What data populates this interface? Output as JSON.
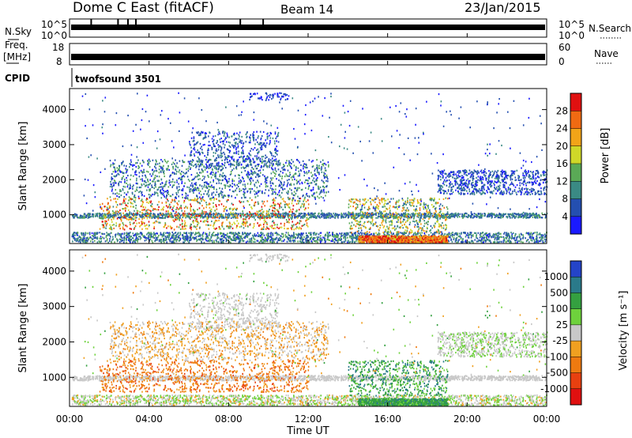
{
  "header": {
    "station": "Dome C East (fitACF)",
    "beam": "Beam 14",
    "date": "23/Jan/2015"
  },
  "status_panels": {
    "nsky_label": "N.Sky",
    "nsky_ticks": [
      "10^5",
      "10^0"
    ],
    "nsearch_label": "N.Search",
    "nsearch_ticks": [
      "10^5",
      "10^0"
    ],
    "freq_label": "Freq.",
    "freq_unit": "[MHz]",
    "freq_ticks": [
      "18",
      "8"
    ],
    "nave_label": "Nave",
    "nave_ticks": [
      "60",
      "0"
    ],
    "cpid_label": "CPID",
    "cpid_value": "twofsound 3501"
  },
  "colors": {
    "power_scale": [
      "#1a1aff",
      "#244fb0",
      "#3a8a84",
      "#5aaa56",
      "#cfd828",
      "#f2a418",
      "#f06a12",
      "#e01010"
    ],
    "velocity_scale": [
      "#2444c8",
      "#2a7a8a",
      "#34a040",
      "#6ed23c",
      "#c8c8c8",
      "#f0a020",
      "#ee7a10",
      "#e84010",
      "#e01010"
    ]
  },
  "chart_data": [
    {
      "type": "heatmap",
      "name": "power-panel",
      "xlabel": "",
      "ylabel": "Slant Range [km]",
      "y_ticks": [
        1000,
        2000,
        3000,
        4000
      ],
      "ylim": [
        180,
        4600
      ],
      "xlim_hours": [
        0,
        24
      ],
      "colorbar_label": "Power [dB]",
      "colorbar_ticks": [
        "4",
        "8",
        "12",
        "16",
        "20",
        "24",
        "28"
      ],
      "colorbar_range": [
        0,
        30
      ]
    },
    {
      "type": "heatmap",
      "name": "velocity-panel",
      "xlabel": "Time UT",
      "ylabel": "Slant Range [km]",
      "y_ticks": [
        1000,
        2000,
        3000,
        4000
      ],
      "ylim": [
        180,
        4600
      ],
      "xlim_hours": [
        0,
        24
      ],
      "x_ticks": [
        "00:00",
        "04:00",
        "08:00",
        "12:00",
        "16:00",
        "20:00",
        "00:00"
      ],
      "colorbar_label": "Velocity [m s⁻¹]",
      "colorbar_ticks": [
        "1000",
        "500",
        "100",
        "25",
        "-25",
        "-100",
        "-500",
        "-1000"
      ]
    }
  ]
}
